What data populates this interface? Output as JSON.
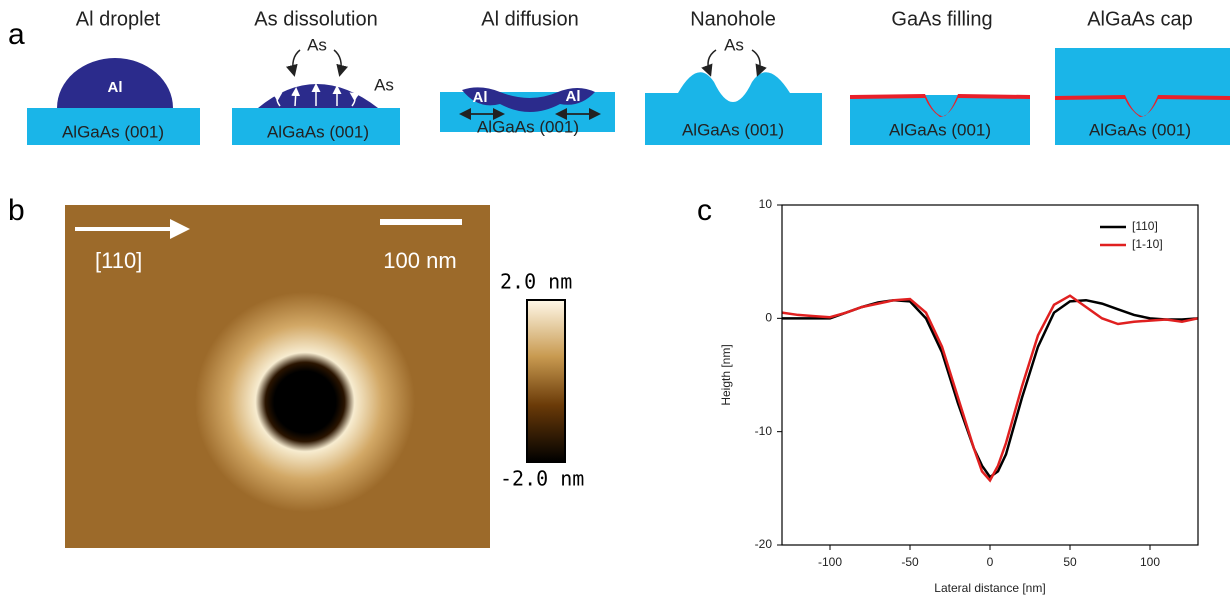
{
  "panel_labels": [
    "a",
    "b",
    "c"
  ],
  "steps": [
    {
      "title": "Al droplet",
      "labels": [
        "Al"
      ],
      "substrate": "AlGaAs (001)"
    },
    {
      "title": "As dissolution",
      "labels": [
        "As",
        "As"
      ],
      "substrate": "AlGaAs (001)"
    },
    {
      "title": "Al diffusion",
      "labels": [
        "Al",
        "Al"
      ],
      "substrate": "AlGaAs (001)"
    },
    {
      "title": "Nanohole",
      "labels": [
        "As"
      ],
      "substrate": "AlGaAs (001)"
    },
    {
      "title": "GaAs filling",
      "labels": [],
      "substrate": "AlGaAs (001)"
    },
    {
      "title": "AlGaAs cap",
      "labels": [],
      "substrate": "AlGaAs (001)"
    }
  ],
  "afm": {
    "direction": "[110]",
    "scale_bar": "100 nm",
    "colorbar_max": "2.0 nm",
    "colorbar_min": "-2.0 nm"
  },
  "chart_data": {
    "type": "line",
    "xlabel": "Lateral distance [nm]",
    "ylabel": "Heigth [nm]",
    "x": [
      -130,
      -120,
      -110,
      -100,
      -90,
      -80,
      -70,
      -60,
      -50,
      -40,
      -30,
      -20,
      -10,
      -5,
      0,
      5,
      10,
      20,
      30,
      40,
      50,
      60,
      70,
      80,
      90,
      100,
      110,
      120,
      130
    ],
    "series": [
      {
        "name": "[110]",
        "color": "#000000",
        "values": [
          0,
          0,
          0,
          0,
          0.5,
          1,
          1.4,
          1.6,
          1.5,
          0,
          -3,
          -7.5,
          -11.5,
          -13,
          -14,
          -13.5,
          -12,
          -7,
          -2.5,
          0.5,
          1.5,
          1.6,
          1.3,
          0.8,
          0.3,
          0,
          -0.1,
          -0.1,
          0
        ]
      },
      {
        "name": "[1-10]",
        "color": "#e02020",
        "values": [
          0.5,
          0.3,
          0.2,
          0.1,
          0.5,
          1,
          1.3,
          1.6,
          1.7,
          0.5,
          -2.5,
          -7,
          -11.5,
          -13.5,
          -14.3,
          -13,
          -11,
          -6,
          -1.5,
          1.2,
          2,
          1,
          0,
          -0.5,
          -0.3,
          -0.2,
          -0.1,
          -0.3,
          0
        ]
      }
    ],
    "xlim": [
      -130,
      130
    ],
    "ylim": [
      -20,
      10
    ],
    "xticks": [
      -100,
      -50,
      0,
      50,
      100
    ],
    "yticks": [
      -20,
      -10,
      0,
      10
    ],
    "legend": "upper right"
  }
}
